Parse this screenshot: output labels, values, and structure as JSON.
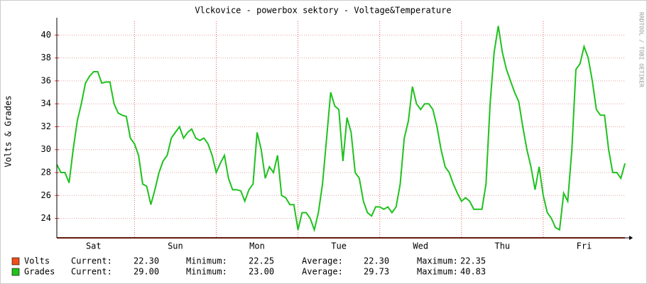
{
  "chart_data": {
    "type": "line",
    "title": "Vlckovice - powerbox sektory - Voltage&Temperature",
    "y_label": "Volts & Grades",
    "side_note": "RRDTOOL / TOBI OETIKER",
    "categories": [
      null,
      null,
      null,
      null,
      null,
      null,
      null,
      null,
      null,
      "Sat",
      null,
      null,
      null,
      null,
      null,
      null,
      null,
      null,
      null,
      null,
      null,
      null,
      null,
      null,
      null,
      null,
      null,
      null,
      null,
      "Sun",
      null,
      null,
      null,
      null,
      null,
      null,
      null,
      null,
      null,
      null,
      null,
      null,
      null,
      null,
      null,
      null,
      null,
      null,
      null,
      "Mon",
      null,
      null,
      null,
      null,
      null,
      null,
      null,
      null,
      null,
      null,
      null,
      null,
      null,
      null,
      null,
      null,
      null,
      null,
      null,
      "Tue",
      null,
      null,
      null,
      null,
      null,
      null,
      null,
      null,
      null,
      null,
      null,
      null,
      null,
      null,
      null,
      null,
      null,
      null,
      null,
      "Wed",
      null,
      null,
      null,
      null,
      null,
      null,
      null,
      null,
      null,
      null,
      null,
      null,
      null,
      null,
      null,
      null,
      null,
      null,
      null,
      "Thu",
      null,
      null,
      null,
      null,
      null,
      null,
      null,
      null,
      null,
      null,
      null,
      null,
      null,
      null,
      null,
      null,
      null,
      null,
      null,
      "Fri",
      null,
      null,
      null,
      null,
      null,
      null,
      null,
      null,
      null,
      null
    ],
    "ylim": [
      22.3,
      41.2
    ],
    "yticks": [
      24,
      26,
      28,
      30,
      32,
      34,
      36,
      38,
      40
    ],
    "grid": true,
    "stat_labels": [
      "Current:",
      "Minimum:",
      "Average:",
      "Maximum:"
    ],
    "series": [
      {
        "name": "Volts",
        "color": "#c8351a",
        "legend_color": "#f04e1a",
        "values": [
          22.3,
          22.3,
          22.3,
          22.3,
          22.3,
          22.3,
          22.3,
          22.3,
          22.3,
          22.3,
          22.3,
          22.3,
          22.3,
          22.3,
          22.3,
          22.3,
          22.3,
          22.3,
          22.3,
          22.3,
          22.3,
          22.3,
          22.3,
          22.3,
          22.3,
          22.3,
          22.3,
          22.3,
          22.3,
          22.3,
          22.3,
          22.3,
          22.3,
          22.3,
          22.3,
          22.3,
          22.3,
          22.3,
          22.3,
          22.3,
          22.3,
          22.3,
          22.3,
          22.3,
          22.3,
          22.3,
          22.3,
          22.3,
          22.3,
          22.3,
          22.3,
          22.3,
          22.3,
          22.3,
          22.3,
          22.3,
          22.3,
          22.3,
          22.3,
          22.3,
          22.3,
          22.3,
          22.3,
          22.3,
          22.3,
          22.3,
          22.3,
          22.3,
          22.3,
          22.3,
          22.3,
          22.3,
          22.3,
          22.3,
          22.3,
          22.3,
          22.3,
          22.3,
          22.3,
          22.3,
          22.3,
          22.3,
          22.3,
          22.3,
          22.3,
          22.3,
          22.3,
          22.3,
          22.3,
          22.3,
          22.3,
          22.3,
          22.3,
          22.3,
          22.3,
          22.3,
          22.3,
          22.3,
          22.3,
          22.3,
          22.3,
          22.3,
          22.3,
          22.3,
          22.3,
          22.3,
          22.3,
          22.3,
          22.3,
          22.3,
          22.3,
          22.3,
          22.3,
          22.3,
          22.3,
          22.3,
          22.3,
          22.3,
          22.3,
          22.3,
          22.3,
          22.3,
          22.3,
          22.3,
          22.3,
          22.3,
          22.3,
          22.3,
          22.3,
          22.3,
          22.3,
          22.3,
          22.3,
          22.3,
          22.3,
          22.3,
          22.3,
          22.3,
          22.3,
          22.3
        ],
        "stats": [
          22.3,
          22.25,
          22.3,
          22.35
        ],
        "stats_printed": [
          "22.30",
          "22.25",
          "22.30",
          "22.35"
        ]
      },
      {
        "name": "Grades",
        "color": "#1ec21e",
        "legend_color": "#22c11a",
        "values": [
          28.7,
          28.0,
          28.0,
          27.1,
          30.0,
          32.5,
          34.0,
          35.8,
          36.4,
          36.8,
          36.8,
          35.8,
          35.9,
          35.9,
          34.0,
          33.2,
          33.0,
          32.9,
          31.0,
          30.5,
          29.5,
          27.0,
          26.8,
          25.2,
          26.5,
          28.0,
          29.0,
          29.5,
          31.0,
          31.5,
          32.0,
          31.0,
          31.5,
          31.8,
          31.0,
          30.8,
          31.0,
          30.5,
          29.5,
          28.0,
          28.8,
          29.5,
          27.5,
          26.5,
          26.5,
          26.4,
          25.5,
          26.5,
          27.0,
          31.5,
          30.0,
          27.5,
          28.5,
          28.0,
          29.5,
          26.0,
          25.8,
          25.2,
          25.2,
          23.0,
          24.5,
          24.5,
          24.0,
          23.0,
          24.5,
          27.0,
          31.0,
          35.0,
          33.8,
          33.5,
          29.0,
          32.8,
          31.5,
          28.0,
          27.5,
          25.5,
          24.5,
          24.2,
          25.0,
          25.0,
          24.8,
          25.0,
          24.5,
          25.0,
          27.0,
          31.0,
          32.5,
          35.5,
          34.0,
          33.5,
          34.0,
          34.0,
          33.5,
          32.0,
          30.0,
          28.5,
          28.0,
          27.0,
          26.2,
          25.5,
          25.8,
          25.5,
          24.8,
          24.8,
          24.8,
          27.0,
          34.0,
          38.5,
          40.8,
          38.5,
          37.0,
          36.0,
          35.0,
          34.2,
          32.0,
          30.0,
          28.5,
          26.5,
          28.5,
          26.0,
          24.5,
          24.0,
          23.2,
          23.0,
          26.2,
          25.5,
          30.0,
          37.0,
          37.5,
          39.0,
          38.0,
          36.0,
          33.5,
          33.0,
          33.0,
          30.0,
          28.0,
          28.0,
          27.5,
          28.8
        ],
        "stats": [
          29.0,
          23.0,
          29.73,
          40.83
        ],
        "stats_printed": [
          "29.00",
          "23.00",
          "29.73",
          "40.83"
        ]
      }
    ]
  }
}
